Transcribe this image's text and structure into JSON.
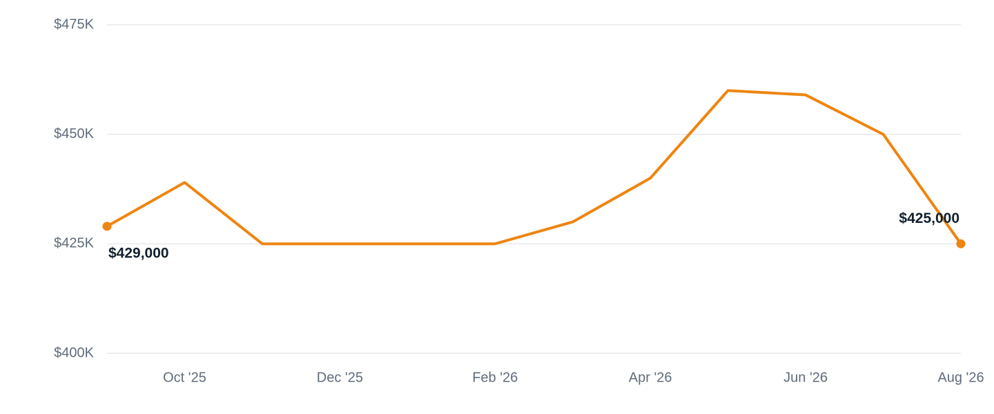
{
  "chart_data": {
    "type": "line",
    "categories": [
      null,
      "Oct '25",
      null,
      "Dec '25",
      null,
      "Feb '26",
      null,
      "Apr '26",
      null,
      "Jun '26",
      null,
      "Aug '26"
    ],
    "series": [
      {
        "color": "#ee8510",
        "values": [
          429000,
          439000,
          425000,
          425000,
          425000,
          425000,
          430000,
          440000,
          460000,
          459000,
          450000,
          425000
        ],
        "value_labels": [
          "$429,000",
          null,
          null,
          null,
          null,
          null,
          null,
          null,
          null,
          null,
          null,
          "$425,000"
        ]
      }
    ],
    "ylim": [
      400000,
      475000
    ],
    "yticks": [
      {
        "value": 400000,
        "label": "$400K"
      },
      {
        "value": 425000,
        "label": "$425K"
      },
      {
        "value": 450000,
        "label": "$450K"
      },
      {
        "value": 475000,
        "label": "$475K"
      }
    ],
    "grid": true
  }
}
